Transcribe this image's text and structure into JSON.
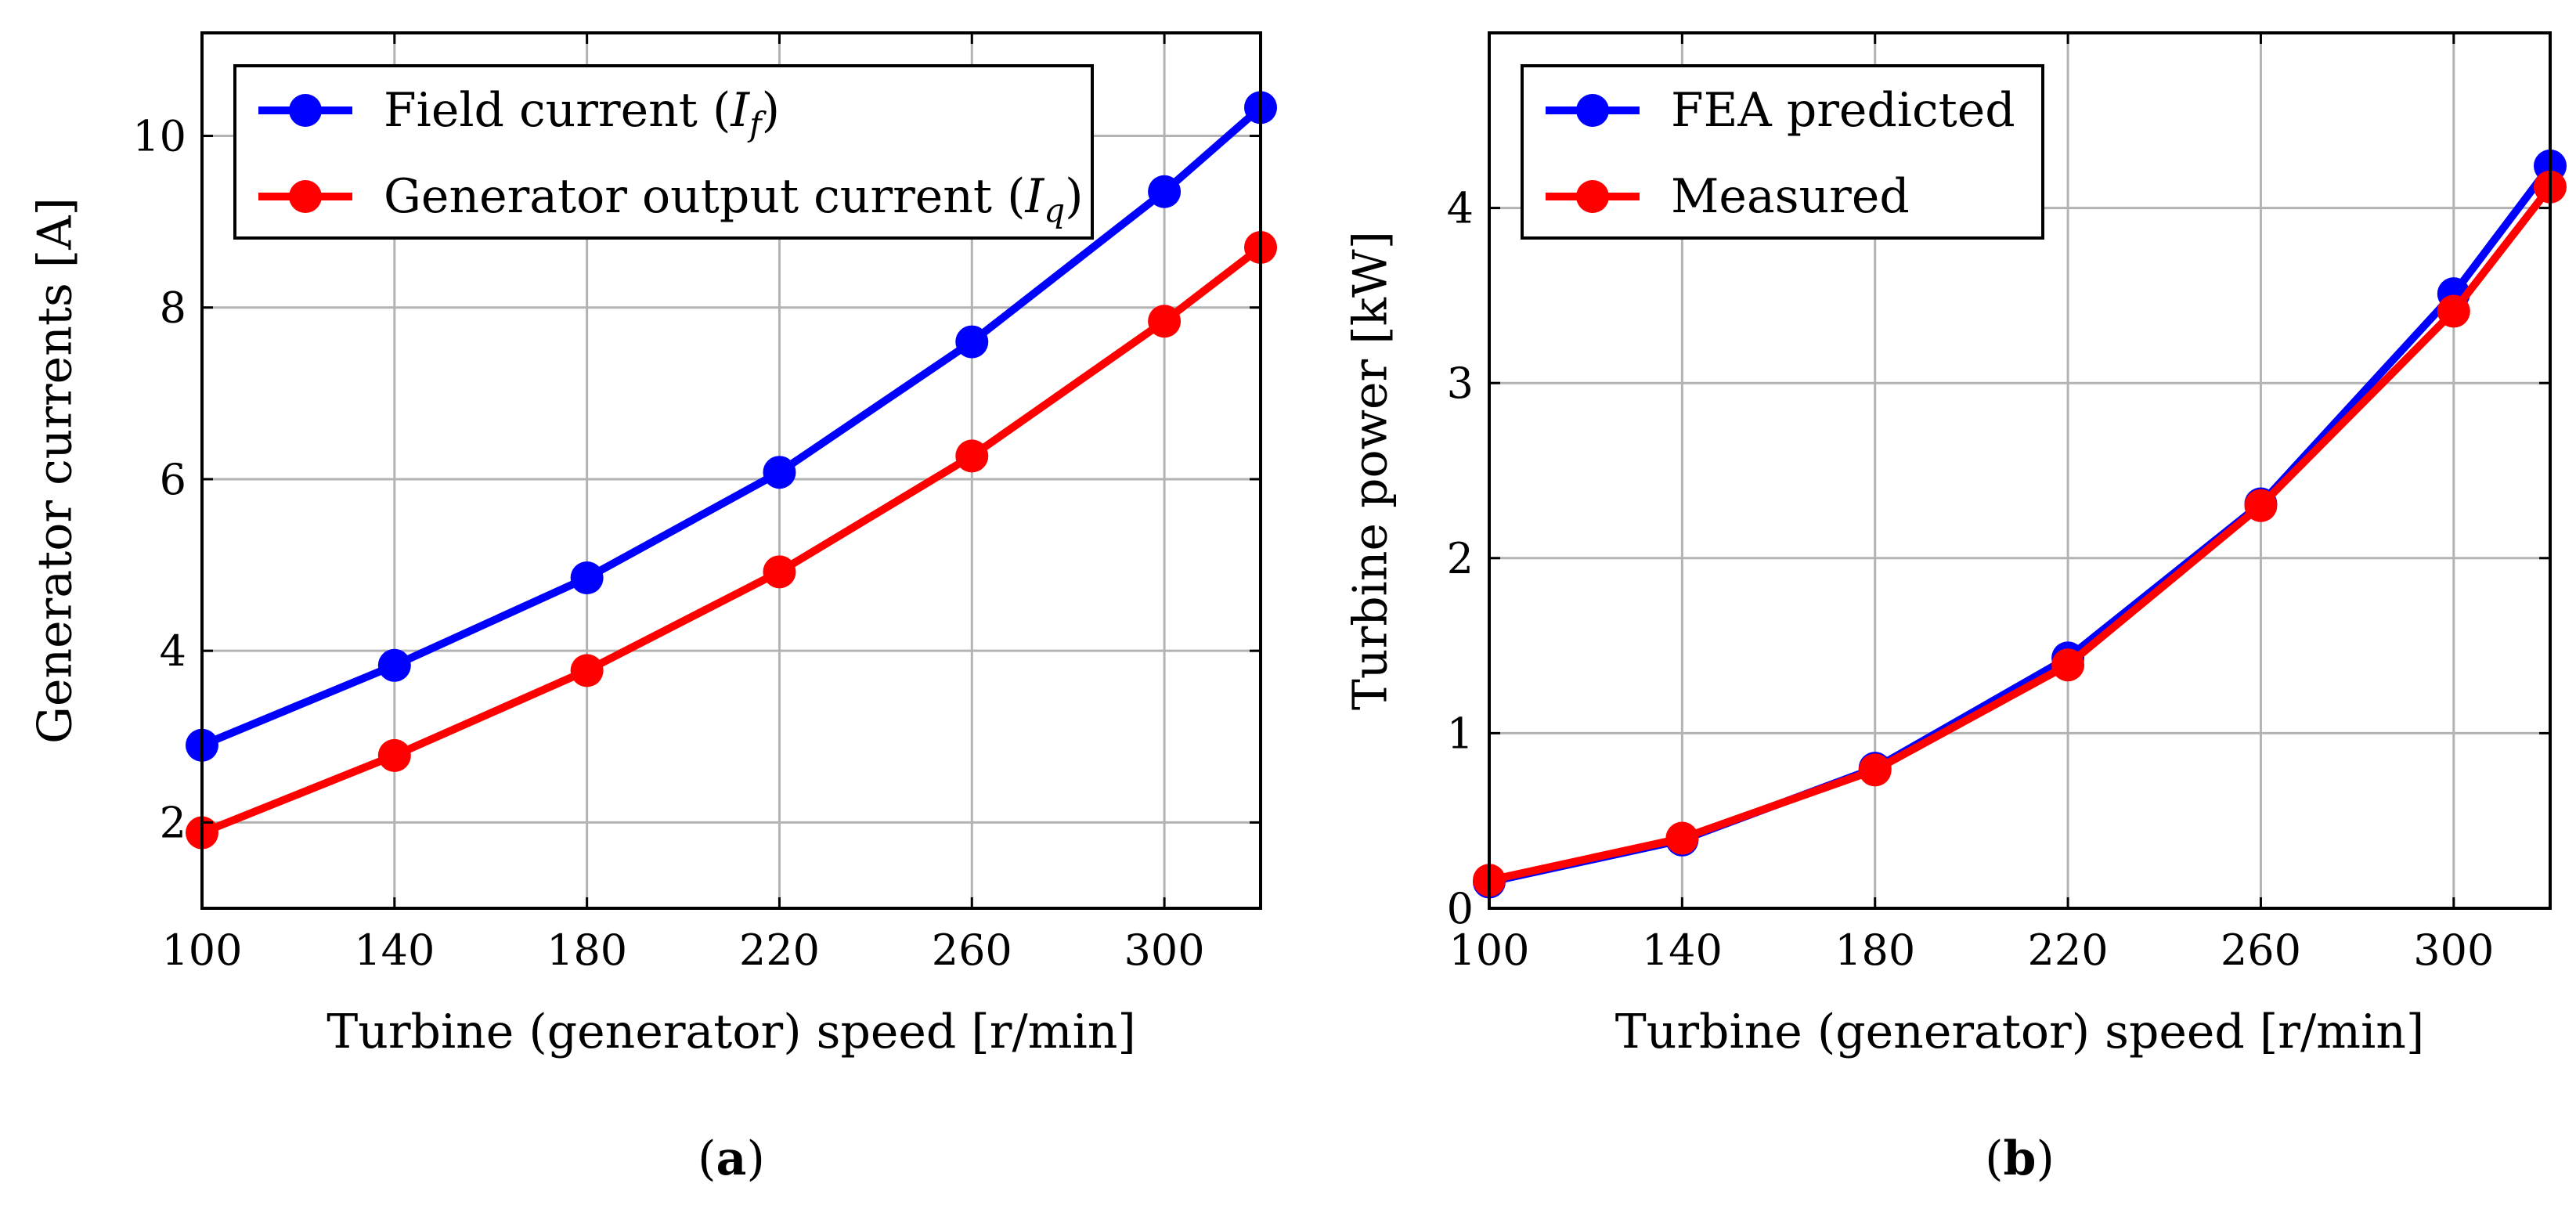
{
  "chart_data": [
    {
      "type": "line",
      "xlabel": "Turbine (generator) speed [r/min]",
      "ylabel": "Generator currents [A]",
      "xticks": [
        100,
        140,
        180,
        220,
        260,
        300
      ],
      "yticks": [
        2,
        4,
        6,
        8,
        10
      ],
      "xlim": [
        100,
        320
      ],
      "ylim": [
        1.0,
        11.2
      ],
      "legend_position": "top-left",
      "series": [
        {
          "name": "Field current (I_f)",
          "legend_prefix": "Field current (",
          "legend_symbol": "I",
          "legend_sub": "f",
          "legend_suffix": ")",
          "color": "#0000ff",
          "x": [
            100,
            140,
            180,
            220,
            260,
            300,
            320
          ],
          "values": [
            2.9,
            3.83,
            4.85,
            6.08,
            7.6,
            9.35,
            10.33
          ]
        },
        {
          "name": "Generator output current (I_q)",
          "legend_prefix": "Generator output current (",
          "legend_symbol": "I",
          "legend_sub": "q",
          "legend_suffix": ")",
          "color": "#ff0000",
          "x": [
            100,
            140,
            180,
            220,
            260,
            300,
            320
          ],
          "values": [
            1.88,
            2.78,
            3.77,
            4.92,
            6.27,
            7.84,
            8.7
          ]
        }
      ],
      "caption_letter": "a"
    },
    {
      "type": "line",
      "xlabel": "Turbine (generator) speed [r/min]",
      "ylabel": "Turbine power [kW]",
      "xticks": [
        100,
        140,
        180,
        220,
        260,
        300
      ],
      "yticks": [
        0,
        1,
        2,
        3,
        4
      ],
      "xlim": [
        100,
        320
      ],
      "ylim": [
        0,
        5.0
      ],
      "legend_position": "top-left",
      "series": [
        {
          "name": "FEA predicted",
          "legend_prefix": "FEA predicted",
          "color": "#0000ff",
          "x": [
            100,
            140,
            180,
            220,
            260,
            300,
            320
          ],
          "values": [
            0.15,
            0.39,
            0.8,
            1.43,
            2.31,
            3.51,
            4.24
          ]
        },
        {
          "name": "Measured",
          "legend_prefix": "Measured",
          "color": "#ff0000",
          "x": [
            100,
            140,
            180,
            220,
            260,
            300,
            320
          ],
          "values": [
            0.16,
            0.4,
            0.79,
            1.39,
            2.3,
            3.41,
            4.12
          ]
        }
      ],
      "caption_letter": "b"
    }
  ]
}
